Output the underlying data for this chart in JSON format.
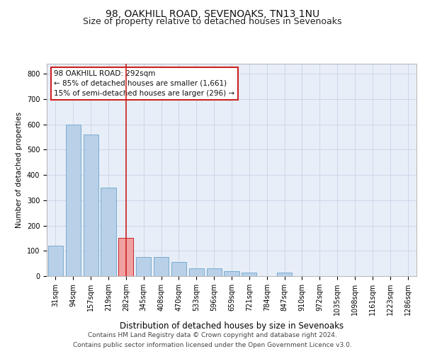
{
  "title1": "98, OAKHILL ROAD, SEVENOAKS, TN13 1NU",
  "title2": "Size of property relative to detached houses in Sevenoaks",
  "xlabel": "Distribution of detached houses by size in Sevenoaks",
  "ylabel": "Number of detached properties",
  "categories": [
    "31sqm",
    "94sqm",
    "157sqm",
    "219sqm",
    "282sqm",
    "345sqm",
    "408sqm",
    "470sqm",
    "533sqm",
    "596sqm",
    "659sqm",
    "721sqm",
    "784sqm",
    "847sqm",
    "910sqm",
    "972sqm",
    "1035sqm",
    "1098sqm",
    "1161sqm",
    "1223sqm",
    "1286sqm"
  ],
  "values": [
    120,
    600,
    560,
    350,
    150,
    75,
    75,
    55,
    30,
    30,
    20,
    15,
    0,
    15,
    0,
    0,
    0,
    0,
    0,
    0,
    0
  ],
  "highlight_index": 4,
  "highlight_color": "#cc2222",
  "bar_color": "#b8d0e8",
  "bar_edge_color": "#7aadd0",
  "highlight_bar_color": "#f0a0a0",
  "background_color": "#e8eef8",
  "grid_color": "#c8d4e8",
  "ylim": [
    0,
    840
  ],
  "yticks": [
    0,
    100,
    200,
    300,
    400,
    500,
    600,
    700,
    800
  ],
  "annotation_title": "98 OAKHILL ROAD: 292sqm",
  "annotation_line1": "← 85% of detached houses are smaller (1,661)",
  "annotation_line2": "15% of semi-detached houses are larger (296) →",
  "footnote1": "Contains HM Land Registry data © Crown copyright and database right 2024.",
  "footnote2": "Contains public sector information licensed under the Open Government Licence v3.0.",
  "title1_fontsize": 10,
  "title2_fontsize": 9,
  "xlabel_fontsize": 8.5,
  "ylabel_fontsize": 7.5,
  "tick_fontsize": 7,
  "annot_fontsize": 7.5,
  "footnote_fontsize": 6.5
}
